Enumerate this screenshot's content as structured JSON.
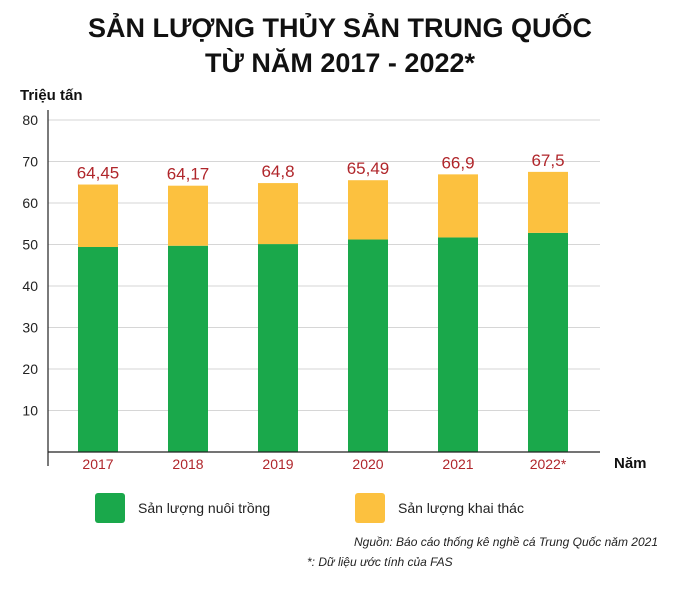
{
  "chart_data": {
    "type": "bar",
    "stacked": true,
    "title": [
      "SẢN LƯỢNG THỦY SẢN TRUNG QUỐC",
      "TỪ NĂM 2017 - 2022*"
    ],
    "ylabel": "Triệu tấn",
    "xlabel": "Năm",
    "ylim": [
      0,
      80
    ],
    "yticks": [
      10,
      20,
      30,
      40,
      50,
      60,
      70,
      80
    ],
    "grid": true,
    "categories": [
      "2017",
      "2018",
      "2019",
      "2020",
      "2021",
      "2022*"
    ],
    "totals_labels": [
      "64,45",
      "64,17",
      "64,8",
      "65,49",
      "66,9",
      "67,5"
    ],
    "series": [
      {
        "name": "Sản lượng nuôi trồng",
        "color": "#1aa84b",
        "values": [
          49.4,
          49.7,
          50.1,
          51.2,
          51.7,
          52.8
        ]
      },
      {
        "name": "Sản lượng khai thác",
        "color": "#fcc13f",
        "values": [
          15.05,
          14.47,
          14.7,
          14.29,
          15.2,
          14.7
        ]
      }
    ],
    "legend_position": "bottom",
    "notes": [
      "Nguồn: Báo cáo thống kê nghề cá Trung Quốc năm 2021",
      "*: Dữ liệu ước tính của FAS"
    ]
  }
}
